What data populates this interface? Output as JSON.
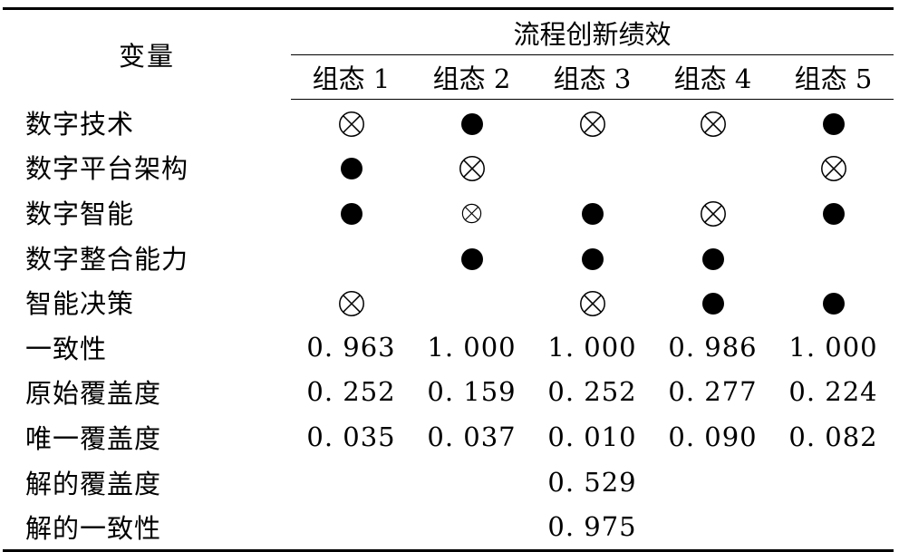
{
  "table": {
    "variable_header": "变量",
    "group_header": "流程创新绩效",
    "configurations": [
      "组态 1",
      "组态 2",
      "组态 3",
      "组态 4",
      "组态 5"
    ],
    "condition_rows": [
      {
        "label": "数字技术",
        "marks": [
          "crossed-circle-large-icon",
          "filled-circle-icon",
          "crossed-circle-large-icon",
          "crossed-circle-large-icon",
          "filled-circle-icon"
        ]
      },
      {
        "label": "数字平台架构",
        "marks": [
          "filled-circle-icon",
          "crossed-circle-large-icon",
          "",
          "",
          "crossed-circle-large-icon"
        ]
      },
      {
        "label": "数字智能",
        "marks": [
          "filled-circle-icon",
          "crossed-circle-small-icon",
          "filled-circle-icon",
          "crossed-circle-large-icon",
          "filled-circle-icon"
        ]
      },
      {
        "label": "数字整合能力",
        "marks": [
          "",
          "filled-circle-icon",
          "filled-circle-icon",
          "filled-circle-icon",
          ""
        ]
      },
      {
        "label": "智能决策",
        "marks": [
          "crossed-circle-large-icon",
          "",
          "crossed-circle-large-icon",
          "filled-circle-icon",
          "filled-circle-icon"
        ]
      }
    ],
    "metric_rows": [
      {
        "label": "一致性",
        "values": [
          "0. 963",
          "1. 000",
          "1. 000",
          "0. 986",
          "1. 000"
        ]
      },
      {
        "label": "原始覆盖度",
        "values": [
          "0. 252",
          "0. 159",
          "0. 252",
          "0. 277",
          "0. 224"
        ]
      },
      {
        "label": "唯一覆盖度",
        "values": [
          "0. 035",
          "0. 037",
          "0. 010",
          "0. 090",
          "0. 082"
        ]
      }
    ],
    "solution_rows": [
      {
        "label": "解的覆盖度",
        "values": [
          "",
          "",
          "0. 529",
          "",
          ""
        ]
      },
      {
        "label": "解的一致性",
        "values": [
          "",
          "",
          "0. 975",
          "",
          ""
        ]
      }
    ]
  }
}
